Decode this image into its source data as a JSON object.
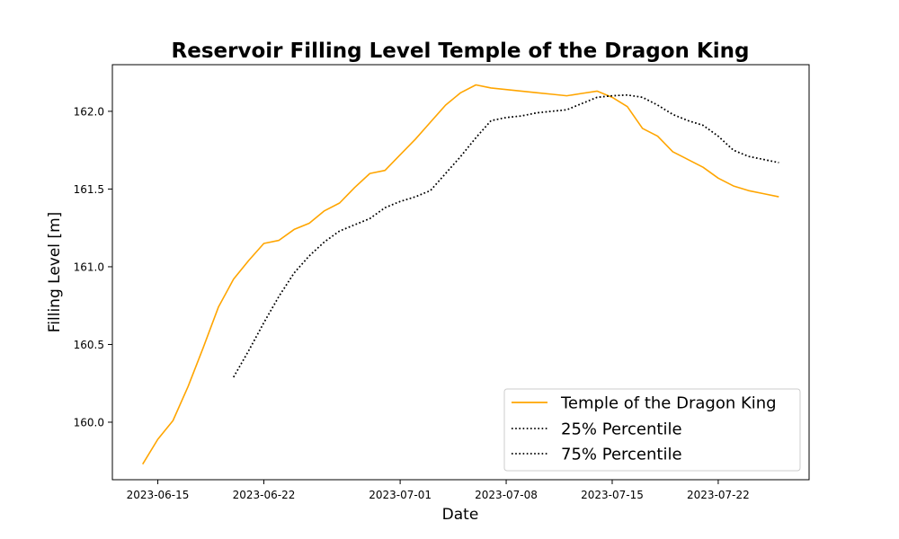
{
  "chart_data": {
    "type": "line",
    "title": "Reservoir Filling Level Temple of the Dragon King",
    "xlabel": "Date",
    "ylabel": "Filling Level [m]",
    "xlim": [
      "2023-06-12",
      "2023-07-28"
    ],
    "ylim": [
      159.63,
      162.3
    ],
    "x_ticks": [
      "2023-06-15",
      "2023-06-22",
      "2023-07-01",
      "2023-07-08",
      "2023-07-15",
      "2023-07-22"
    ],
    "y_ticks": [
      160.0,
      160.5,
      161.0,
      161.5,
      162.0
    ],
    "y_tick_labels": [
      "160.0",
      "160.5",
      "161.0",
      "161.5",
      "162.0"
    ],
    "grid": false,
    "legend_position": "bottom-right",
    "series": [
      {
        "name": "Temple of the Dragon King",
        "color": "#FFA500",
        "style": "solid",
        "points": [
          [
            "2023-06-14",
            159.73
          ],
          [
            "2023-06-15",
            159.89
          ],
          [
            "2023-06-16",
            160.01
          ],
          [
            "2023-06-17",
            160.23
          ],
          [
            "2023-06-18",
            160.48
          ],
          [
            "2023-06-19",
            160.74
          ],
          [
            "2023-06-20",
            160.92
          ],
          [
            "2023-06-21",
            161.04
          ],
          [
            "2023-06-22",
            161.15
          ],
          [
            "2023-06-23",
            161.17
          ],
          [
            "2023-06-24",
            161.24
          ],
          [
            "2023-06-25",
            161.28
          ],
          [
            "2023-06-26",
            161.36
          ],
          [
            "2023-06-27",
            161.41
          ],
          [
            "2023-06-28",
            161.51
          ],
          [
            "2023-06-29",
            161.6
          ],
          [
            "2023-06-30",
            161.62
          ],
          [
            "2023-07-01",
            161.72
          ],
          [
            "2023-07-02",
            161.82
          ],
          [
            "2023-07-03",
            161.93
          ],
          [
            "2023-07-04",
            162.04
          ],
          [
            "2023-07-05",
            162.12
          ],
          [
            "2023-07-06",
            162.17
          ],
          [
            "2023-07-07",
            162.15
          ],
          [
            "2023-07-08",
            162.14
          ],
          [
            "2023-07-09",
            162.13
          ],
          [
            "2023-07-10",
            162.12
          ],
          [
            "2023-07-11",
            162.11
          ],
          [
            "2023-07-12",
            162.1
          ],
          [
            "2023-07-13",
            162.115
          ],
          [
            "2023-07-14",
            162.13
          ],
          [
            "2023-07-15",
            162.09
          ],
          [
            "2023-07-16",
            162.03
          ],
          [
            "2023-07-17",
            161.89
          ],
          [
            "2023-07-18",
            161.84
          ],
          [
            "2023-07-19",
            161.74
          ],
          [
            "2023-07-20",
            161.69
          ],
          [
            "2023-07-21",
            161.64
          ],
          [
            "2023-07-22",
            161.57
          ],
          [
            "2023-07-23",
            161.52
          ],
          [
            "2023-07-24",
            161.49
          ],
          [
            "2023-07-25",
            161.47
          ],
          [
            "2023-07-26",
            161.45
          ]
        ]
      },
      {
        "name": "25% Percentile",
        "color": "#000000",
        "style": "dotted",
        "points": [
          [
            "2023-06-20",
            160.29
          ],
          [
            "2023-06-21",
            160.46
          ],
          [
            "2023-06-22",
            160.64
          ],
          [
            "2023-06-23",
            160.81
          ],
          [
            "2023-06-24",
            160.96
          ],
          [
            "2023-06-25",
            161.07
          ],
          [
            "2023-06-26",
            161.16
          ],
          [
            "2023-06-27",
            161.23
          ],
          [
            "2023-06-28",
            161.27
          ],
          [
            "2023-06-29",
            161.31
          ],
          [
            "2023-06-30",
            161.38
          ],
          [
            "2023-07-01",
            161.42
          ],
          [
            "2023-07-02",
            161.45
          ],
          [
            "2023-07-03",
            161.49
          ],
          [
            "2023-07-04",
            161.6
          ],
          [
            "2023-07-05",
            161.71
          ],
          [
            "2023-07-06",
            161.83
          ],
          [
            "2023-07-07",
            161.94
          ],
          [
            "2023-07-08",
            161.96
          ],
          [
            "2023-07-09",
            161.97
          ],
          [
            "2023-07-10",
            161.99
          ],
          [
            "2023-07-11",
            162.0
          ],
          [
            "2023-07-12",
            162.01
          ],
          [
            "2023-07-13",
            162.05
          ],
          [
            "2023-07-14",
            162.09
          ],
          [
            "2023-07-15",
            162.1
          ],
          [
            "2023-07-16",
            162.105
          ],
          [
            "2023-07-17",
            162.09
          ],
          [
            "2023-07-18",
            162.04
          ],
          [
            "2023-07-19",
            161.98
          ],
          [
            "2023-07-20",
            161.94
          ],
          [
            "2023-07-21",
            161.91
          ],
          [
            "2023-07-22",
            161.84
          ],
          [
            "2023-07-23",
            161.75
          ],
          [
            "2023-07-24",
            161.71
          ],
          [
            "2023-07-25",
            161.69
          ],
          [
            "2023-07-26",
            161.67
          ]
        ]
      },
      {
        "name": "75% Percentile",
        "color": "#000000",
        "style": "dotted",
        "points": [
          [
            "2023-06-20",
            160.29
          ],
          [
            "2023-06-21",
            160.46
          ],
          [
            "2023-06-22",
            160.64
          ],
          [
            "2023-06-23",
            160.81
          ],
          [
            "2023-06-24",
            160.96
          ],
          [
            "2023-06-25",
            161.07
          ],
          [
            "2023-06-26",
            161.16
          ],
          [
            "2023-06-27",
            161.23
          ],
          [
            "2023-06-28",
            161.27
          ],
          [
            "2023-06-29",
            161.31
          ],
          [
            "2023-06-30",
            161.38
          ],
          [
            "2023-07-01",
            161.42
          ],
          [
            "2023-07-02",
            161.45
          ],
          [
            "2023-07-03",
            161.49
          ],
          [
            "2023-07-04",
            161.6
          ],
          [
            "2023-07-05",
            161.71
          ],
          [
            "2023-07-06",
            161.83
          ],
          [
            "2023-07-07",
            161.94
          ],
          [
            "2023-07-08",
            161.96
          ],
          [
            "2023-07-09",
            161.97
          ],
          [
            "2023-07-10",
            161.99
          ],
          [
            "2023-07-11",
            162.0
          ],
          [
            "2023-07-12",
            162.01
          ],
          [
            "2023-07-13",
            162.05
          ],
          [
            "2023-07-14",
            162.09
          ],
          [
            "2023-07-15",
            162.1
          ],
          [
            "2023-07-16",
            162.105
          ],
          [
            "2023-07-17",
            162.09
          ],
          [
            "2023-07-18",
            162.04
          ],
          [
            "2023-07-19",
            161.98
          ],
          [
            "2023-07-20",
            161.94
          ],
          [
            "2023-07-21",
            161.91
          ],
          [
            "2023-07-22",
            161.84
          ],
          [
            "2023-07-23",
            161.75
          ],
          [
            "2023-07-24",
            161.71
          ],
          [
            "2023-07-25",
            161.69
          ],
          [
            "2023-07-26",
            161.67
          ]
        ]
      }
    ]
  }
}
